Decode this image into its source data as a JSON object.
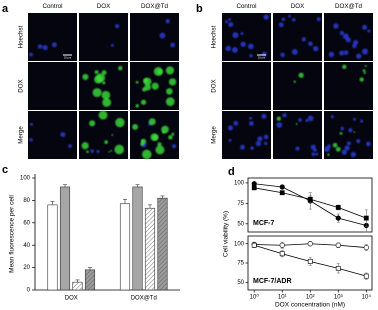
{
  "panel_labels": [
    "a",
    "b",
    "c",
    "d"
  ],
  "microscopy": [
    {
      "columns": [
        "Control",
        "DOX",
        "DOX@Td"
      ],
      "rows": [
        "Hoechst",
        "DOX",
        "Merge"
      ],
      "scale_bar": "10 μm"
    },
    {
      "columns": [
        "Control",
        "DOX",
        "DOX@Td"
      ],
      "rows": [
        "Hoechst",
        "DOX",
        "Merge"
      ],
      "scale_bar": "10 μm"
    }
  ],
  "chart_data": [
    {
      "type": "bar",
      "ylabel": "Mean fluorescence per cell",
      "categories": [
        "DOX",
        "DOX@Td"
      ],
      "ylim": [
        0,
        100
      ],
      "yticks": [
        0,
        20,
        40,
        60,
        80,
        100
      ],
      "series": [
        {
          "color": "#ffffff",
          "pattern": "none",
          "values": [
            76,
            77
          ],
          "errors": [
            3,
            4
          ]
        },
        {
          "color": "#a6a6a6",
          "pattern": "none",
          "values": [
            92,
            92
          ],
          "errors": [
            2,
            2
          ]
        },
        {
          "color": "#ffffff",
          "pattern": "hatch",
          "values": [
            7,
            73
          ],
          "errors": [
            2,
            3
          ]
        },
        {
          "color": "#9a9a9a",
          "pattern": "hatch",
          "values": [
            18,
            82
          ],
          "errors": [
            2,
            2
          ]
        }
      ]
    },
    {
      "type": "line",
      "annotation": "MCF-7",
      "ylabel": "Cell viability (%)",
      "xscale": "log",
      "xlim": [
        0.6,
        16000
      ],
      "x": [
        1,
        10,
        100,
        1000,
        10000
      ],
      "ylim": [
        40,
        106
      ],
      "yticks": [
        50,
        75,
        100
      ],
      "series": [
        {
          "color": "#000000",
          "marker": "circle",
          "filled": true,
          "values": [
            99,
            95,
            78,
            57,
            48
          ],
          "errors": [
            2,
            2,
            10,
            5,
            8
          ]
        },
        {
          "color": "#000000",
          "marker": "square",
          "filled": true,
          "values": [
            94,
            88,
            80,
            70,
            57
          ],
          "errors": [
            2,
            2,
            4,
            3,
            10
          ]
        }
      ]
    },
    {
      "type": "line",
      "annotation": "MCF-7/ADR",
      "xlabel": "DOX concentration (nM)",
      "xscale": "log",
      "xlim": [
        0.6,
        16000
      ],
      "x": [
        1,
        10,
        100,
        1000,
        10000
      ],
      "xticks": [
        {
          "value": 1,
          "label": "10⁰"
        },
        {
          "value": 10,
          "label": "10¹"
        },
        {
          "value": 100,
          "label": "10²"
        },
        {
          "value": 1000,
          "label": "10³"
        },
        {
          "value": 10000,
          "label": "10⁴"
        }
      ],
      "ylim": [
        40,
        110
      ],
      "yticks": [
        50,
        75,
        100
      ],
      "series": [
        {
          "color": "#000000",
          "marker": "circle",
          "filled": false,
          "values": [
            99,
            98,
            100,
            98,
            95
          ],
          "errors": [
            3,
            4,
            3,
            3,
            4
          ]
        },
        {
          "color": "#000000",
          "marker": "square",
          "filled": false,
          "values": [
            98,
            87,
            77,
            68,
            58
          ],
          "errors": [
            3,
            4,
            5,
            6,
            4
          ]
        }
      ]
    }
  ]
}
